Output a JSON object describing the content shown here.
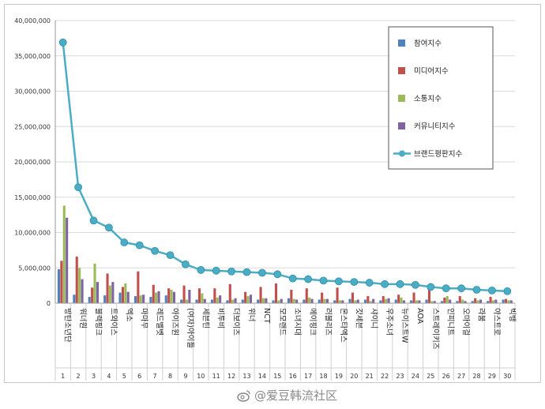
{
  "chart_data": {
    "type": "bar",
    "title": "",
    "xlabel": "",
    "ylabel": "",
    "ylim": [
      0,
      40000000
    ],
    "yticks": [
      "0",
      "5,000,000",
      "10,000,000",
      "15,000,000",
      "20,000,000",
      "25,000,000",
      "30,000,000",
      "35,000,000",
      "40,000,000"
    ],
    "legend_position": "top-right",
    "categories": [
      "방탄소년단",
      "워너원",
      "블랙핑크",
      "트와이스",
      "엑소",
      "마마무",
      "레드벨벳",
      "아이즈원",
      "(여자)아이들",
      "세븐틴",
      "비투비",
      "더보이즈",
      "위너",
      "NCT",
      "모모랜드",
      "소녀시대",
      "에이핑크",
      "러블리즈",
      "몬스타엑스",
      "갓세븐",
      "샤이니",
      "우주소녀",
      "뉴이스트W",
      "AOA",
      "스트레이키즈",
      "인피니트",
      "오마이걸",
      "라붐",
      "아스트로",
      "빅뱅"
    ],
    "ranks": [
      "1",
      "2",
      "3",
      "4",
      "5",
      "6",
      "7",
      "8",
      "9",
      "10",
      "11",
      "12",
      "13",
      "14",
      "15",
      "16",
      "17",
      "18",
      "19",
      "20",
      "21",
      "22",
      "23",
      "24",
      "25",
      "26",
      "27",
      "28",
      "29",
      "30"
    ],
    "series": [
      {
        "name": "참여지수",
        "kind": "bar",
        "color": "#4f81bd",
        "values": [
          4800000,
          1200000,
          900000,
          1100000,
          1500000,
          1000000,
          900000,
          1100000,
          500000,
          500000,
          500000,
          400000,
          500000,
          500000,
          400000,
          700000,
          500000,
          500000,
          400000,
          600000,
          500000,
          400000,
          500000,
          400000,
          500000,
          300000,
          300000,
          300000,
          300000,
          500000
        ]
      },
      {
        "name": "미디어지수",
        "kind": "bar",
        "color": "#c0504d",
        "values": [
          6000000,
          6600000,
          2200000,
          4200000,
          2300000,
          4500000,
          2600000,
          2100000,
          2500000,
          2100000,
          2100000,
          2700000,
          1600000,
          2300000,
          2800000,
          1900000,
          2100000,
          1500000,
          2200000,
          1500000,
          1000000,
          1000000,
          1200000,
          1500000,
          2000000,
          800000,
          1000000,
          700000,
          900000,
          600000
        ]
      },
      {
        "name": "소통지수",
        "kind": "bar",
        "color": "#9bbb59",
        "values": [
          13800000,
          5000000,
          5600000,
          2500000,
          2800000,
          1100000,
          1500000,
          1900000,
          500000,
          1400000,
          800000,
          500000,
          1000000,
          700000,
          400000,
          600000,
          800000,
          600000,
          400000,
          400000,
          300000,
          600000,
          800000,
          400000,
          300000,
          1000000,
          500000,
          400000,
          400000,
          400000
        ]
      },
      {
        "name": "커뮤니티지수",
        "kind": "bar",
        "color": "#8064a2",
        "values": [
          12100000,
          3400000,
          3000000,
          3000000,
          1600000,
          1200000,
          1700000,
          1600000,
          1900000,
          600000,
          1100000,
          700000,
          1200000,
          700000,
          600000,
          500000,
          600000,
          600000,
          400000,
          500000,
          600000,
          700000,
          400000,
          400000,
          300000,
          500000,
          300000,
          500000,
          500000,
          400000
        ]
      },
      {
        "name": "브랜드평판지수",
        "kind": "line",
        "color": "#4bacc6",
        "values": [
          36900000,
          16400000,
          11700000,
          10700000,
          8600000,
          8200000,
          7400000,
          6800000,
          5500000,
          4700000,
          4600000,
          4500000,
          4400000,
          4300000,
          4100000,
          3500000,
          3400000,
          3200000,
          3100000,
          3000000,
          2900000,
          2700000,
          2700000,
          2600000,
          2300000,
          2100000,
          2100000,
          1900000,
          1800000,
          1700000
        ]
      }
    ]
  },
  "watermark": {
    "text": "@爱豆韩流社区"
  }
}
